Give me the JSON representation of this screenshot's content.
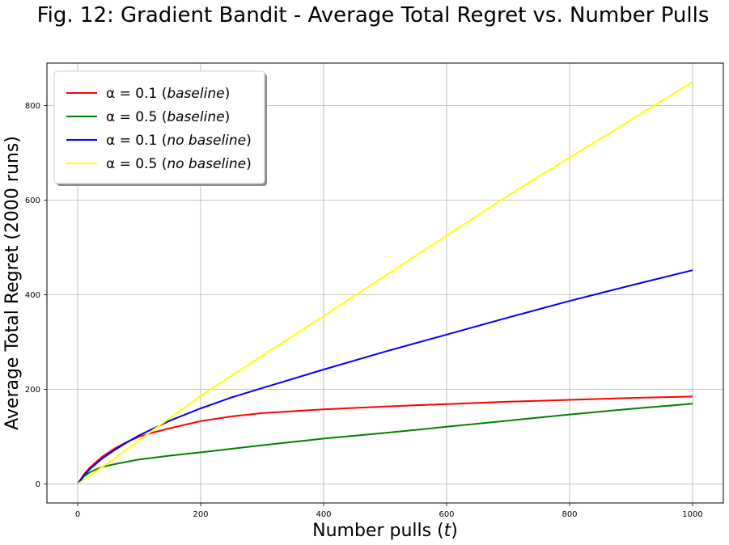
{
  "chart_data": {
    "type": "line",
    "title": "Fig. 12: Gradient Bandit - Average Total Regret vs. Number Pulls",
    "xlabel": "Number pulls (t)",
    "ylabel": "Average Total Regret (2000 runs)",
    "xlim": [
      -50,
      1050
    ],
    "ylim": [
      -40,
      890
    ],
    "xticks": [
      0,
      200,
      400,
      600,
      800,
      1000
    ],
    "yticks": [
      0,
      200,
      400,
      600,
      800
    ],
    "grid": true,
    "legend_position": "top-left",
    "series": [
      {
        "name": "α = 0.1 (baseline)",
        "alpha": "α = 0.1",
        "mode": "baseline",
        "color": "#ff0000",
        "x": [
          0,
          10,
          20,
          40,
          60,
          80,
          100,
          120,
          150,
          200,
          250,
          300,
          400,
          500,
          600,
          700,
          800,
          900,
          1000
        ],
        "values": [
          0,
          20,
          35,
          58,
          75,
          89,
          100,
          108,
          118,
          133,
          143,
          150,
          158,
          164,
          169,
          174,
          178,
          182,
          185
        ]
      },
      {
        "name": "α = 0.5 (baseline)",
        "alpha": "α = 0.5",
        "mode": "baseline",
        "color": "#008000",
        "x": [
          0,
          10,
          20,
          30,
          40,
          60,
          80,
          100,
          150,
          200,
          300,
          400,
          500,
          600,
          700,
          800,
          900,
          1000
        ],
        "values": [
          0,
          16,
          25,
          31,
          36,
          42,
          47,
          52,
          60,
          67,
          82,
          96,
          108,
          121,
          134,
          147,
          159,
          170
        ]
      },
      {
        "name": "α = 0.1 (no baseline)",
        "alpha": "α = 0.1",
        "mode": "no baseline",
        "color": "#0000ff",
        "x": [
          0,
          10,
          20,
          40,
          60,
          80,
          100,
          150,
          200,
          250,
          300,
          400,
          500,
          600,
          700,
          800,
          900,
          1000
        ],
        "values": [
          0,
          18,
          32,
          54,
          72,
          88,
          103,
          134,
          160,
          183,
          203,
          242,
          280,
          316,
          352,
          387,
          420,
          452
        ]
      },
      {
        "name": "α = 0.5 (no baseline)",
        "alpha": "α = 0.5",
        "mode": "no baseline",
        "color": "#ffff00",
        "x": [
          0,
          20,
          50,
          100,
          200,
          300,
          400,
          500,
          600,
          700,
          800,
          900,
          1000
        ],
        "values": [
          0,
          18,
          45,
          93,
          186,
          271,
          355,
          440,
          525,
          610,
          690,
          770,
          850
        ]
      }
    ]
  }
}
